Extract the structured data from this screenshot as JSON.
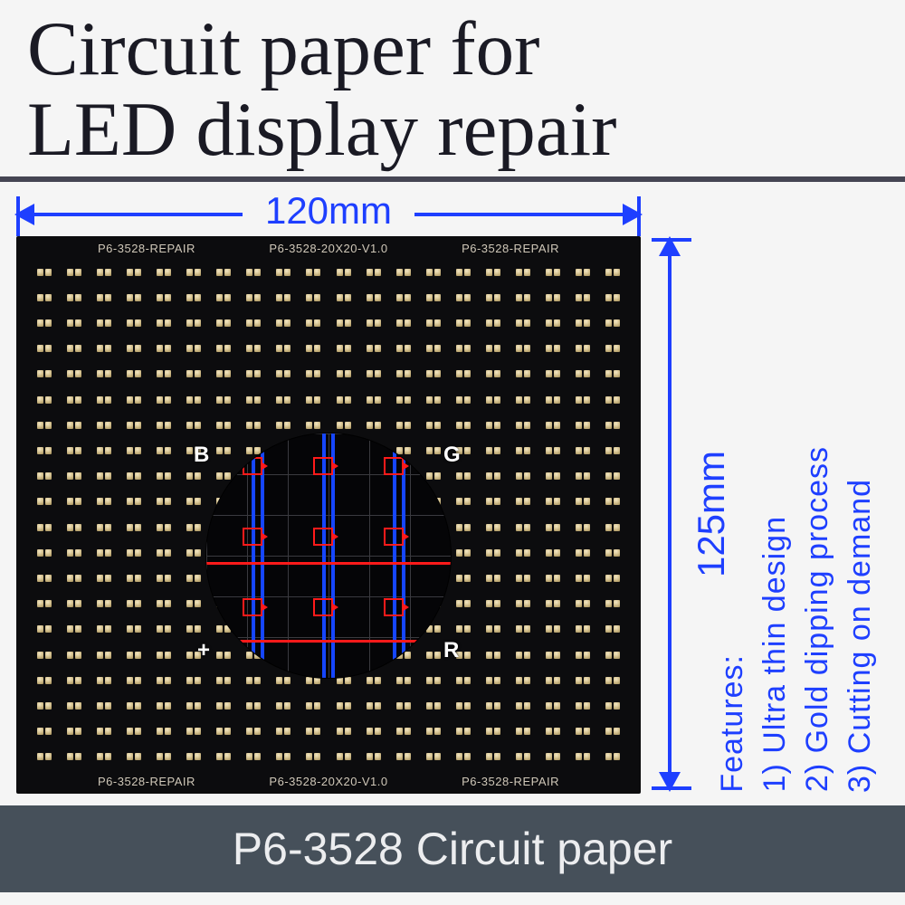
{
  "header": {
    "title_line1": "Circuit paper for",
    "title_line2": "LED display repair"
  },
  "dimensions": {
    "width_label": "120mm",
    "height_label": "125mm",
    "arrow_color": "#1e3fff"
  },
  "pcb": {
    "grid_cols": 20,
    "grid_rows": 20,
    "pads_per_cell": 2,
    "background_color": "#0c0c0e",
    "pad_color_light": "#f2e6c4",
    "pad_color_dark": "#a08a55",
    "silkscreen": {
      "repair": "P6-3528-REPAIR",
      "version": "P6-3528-20X20-V1.0",
      "color": "#cfc7b8"
    }
  },
  "magnifier": {
    "background": "#050507",
    "grid_color": "#3a3a3f",
    "trace_red": "#ff1a1a",
    "trace_blue": "#1646ff",
    "labels": {
      "B": "B",
      "G": "G",
      "plus": "+",
      "R": "R"
    },
    "pad_grid": {
      "cols": 3,
      "rows": 3
    }
  },
  "features": {
    "heading": "Features:",
    "items": [
      "1) Ultra thin design",
      "2) Gold dipping process",
      "3) Cutting on demand"
    ],
    "text_color": "#1e3fff",
    "fontsize": 34
  },
  "footer": {
    "text": "P6-3528 Circuit paper",
    "background": "#46505a",
    "text_color": "#ecedef"
  }
}
